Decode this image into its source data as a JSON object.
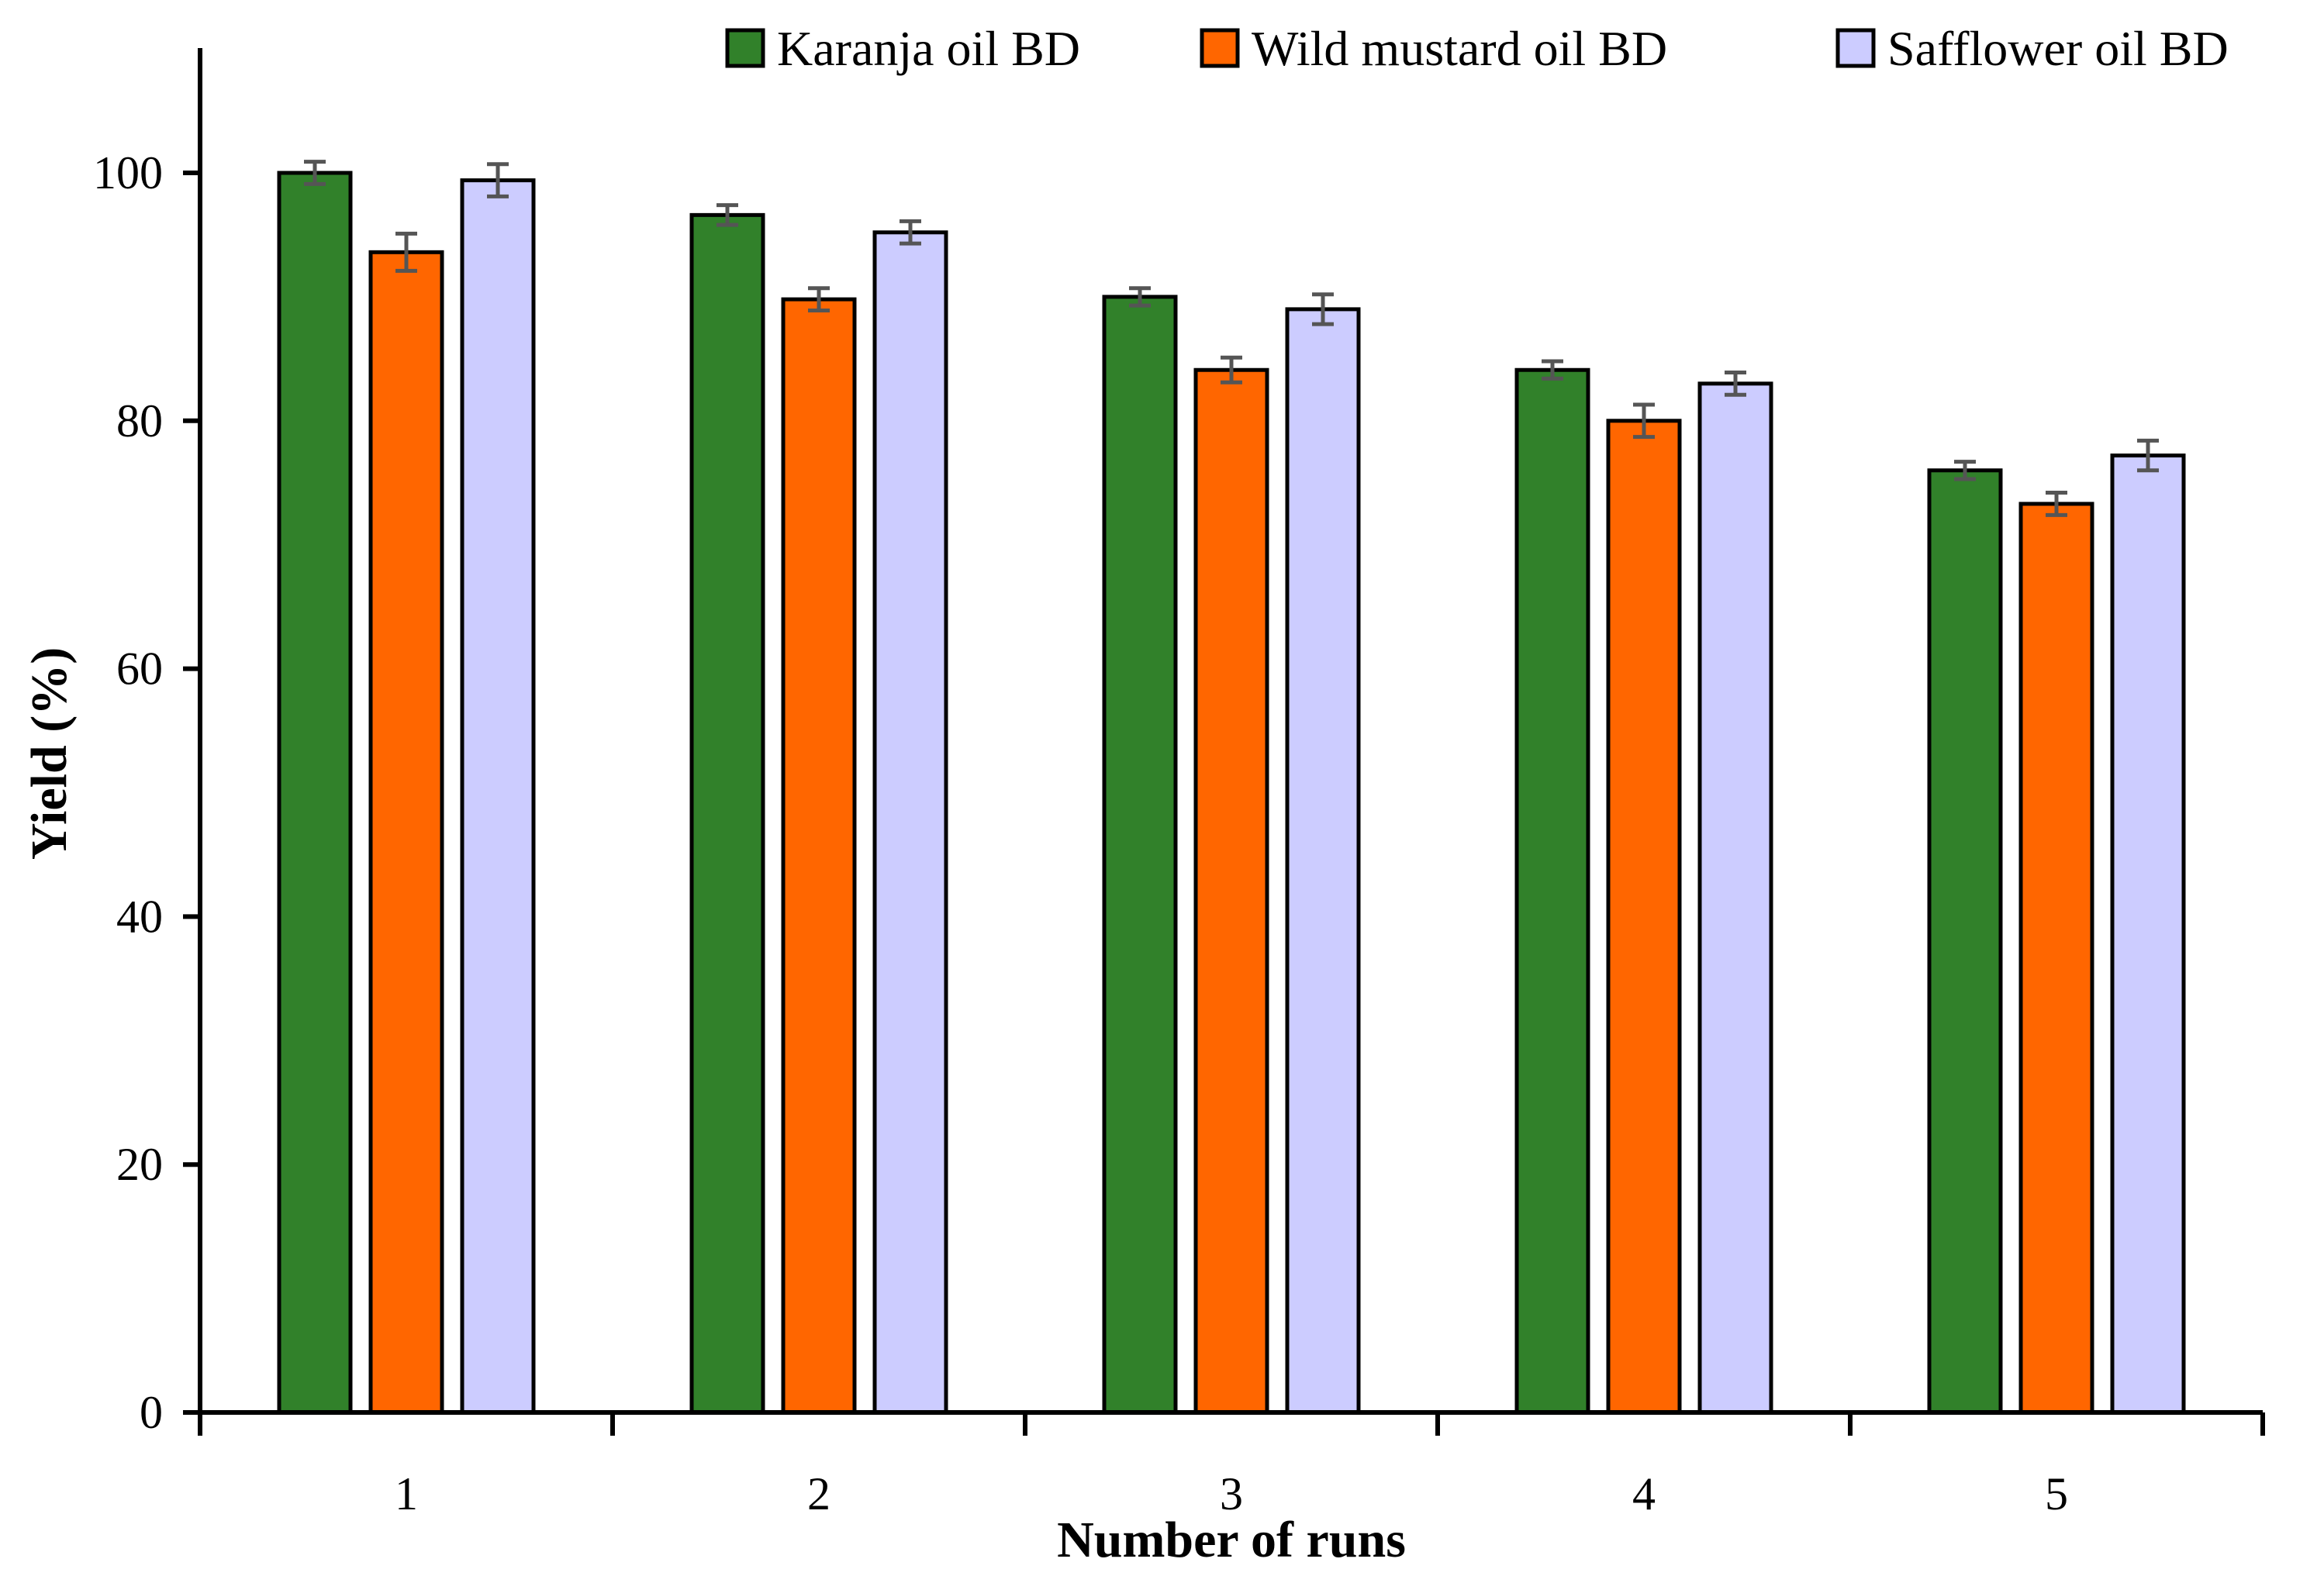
{
  "chart_data": {
    "type": "bar",
    "title": "",
    "xlabel": "Number of runs",
    "ylabel": "Yield (%)",
    "ylim": [
      0,
      110
    ],
    "yticks": [
      0,
      20,
      40,
      60,
      80,
      100
    ],
    "categories": [
      "1",
      "2",
      "3",
      "4",
      "5"
    ],
    "grid": false,
    "legend_position": "top-right",
    "error_bars": true,
    "series": [
      {
        "name": "Karanja oil BD",
        "color": "#31812a",
        "values": [
          100.0,
          96.6,
          90.0,
          84.1,
          76.0
        ],
        "errors": [
          0.9,
          0.8,
          0.7,
          0.7,
          0.7
        ]
      },
      {
        "name": "Wild mustard oil BD",
        "color": "#ff6600",
        "values": [
          93.6,
          89.8,
          84.1,
          80.0,
          73.3
        ],
        "errors": [
          1.5,
          0.9,
          1.0,
          1.3,
          0.9
        ]
      },
      {
        "name": "Safflower oil BD",
        "color": "#ccccff",
        "values": [
          99.4,
          95.2,
          89.0,
          83.0,
          77.2
        ],
        "errors": [
          1.3,
          0.9,
          1.2,
          0.9,
          1.2
        ]
      }
    ]
  }
}
